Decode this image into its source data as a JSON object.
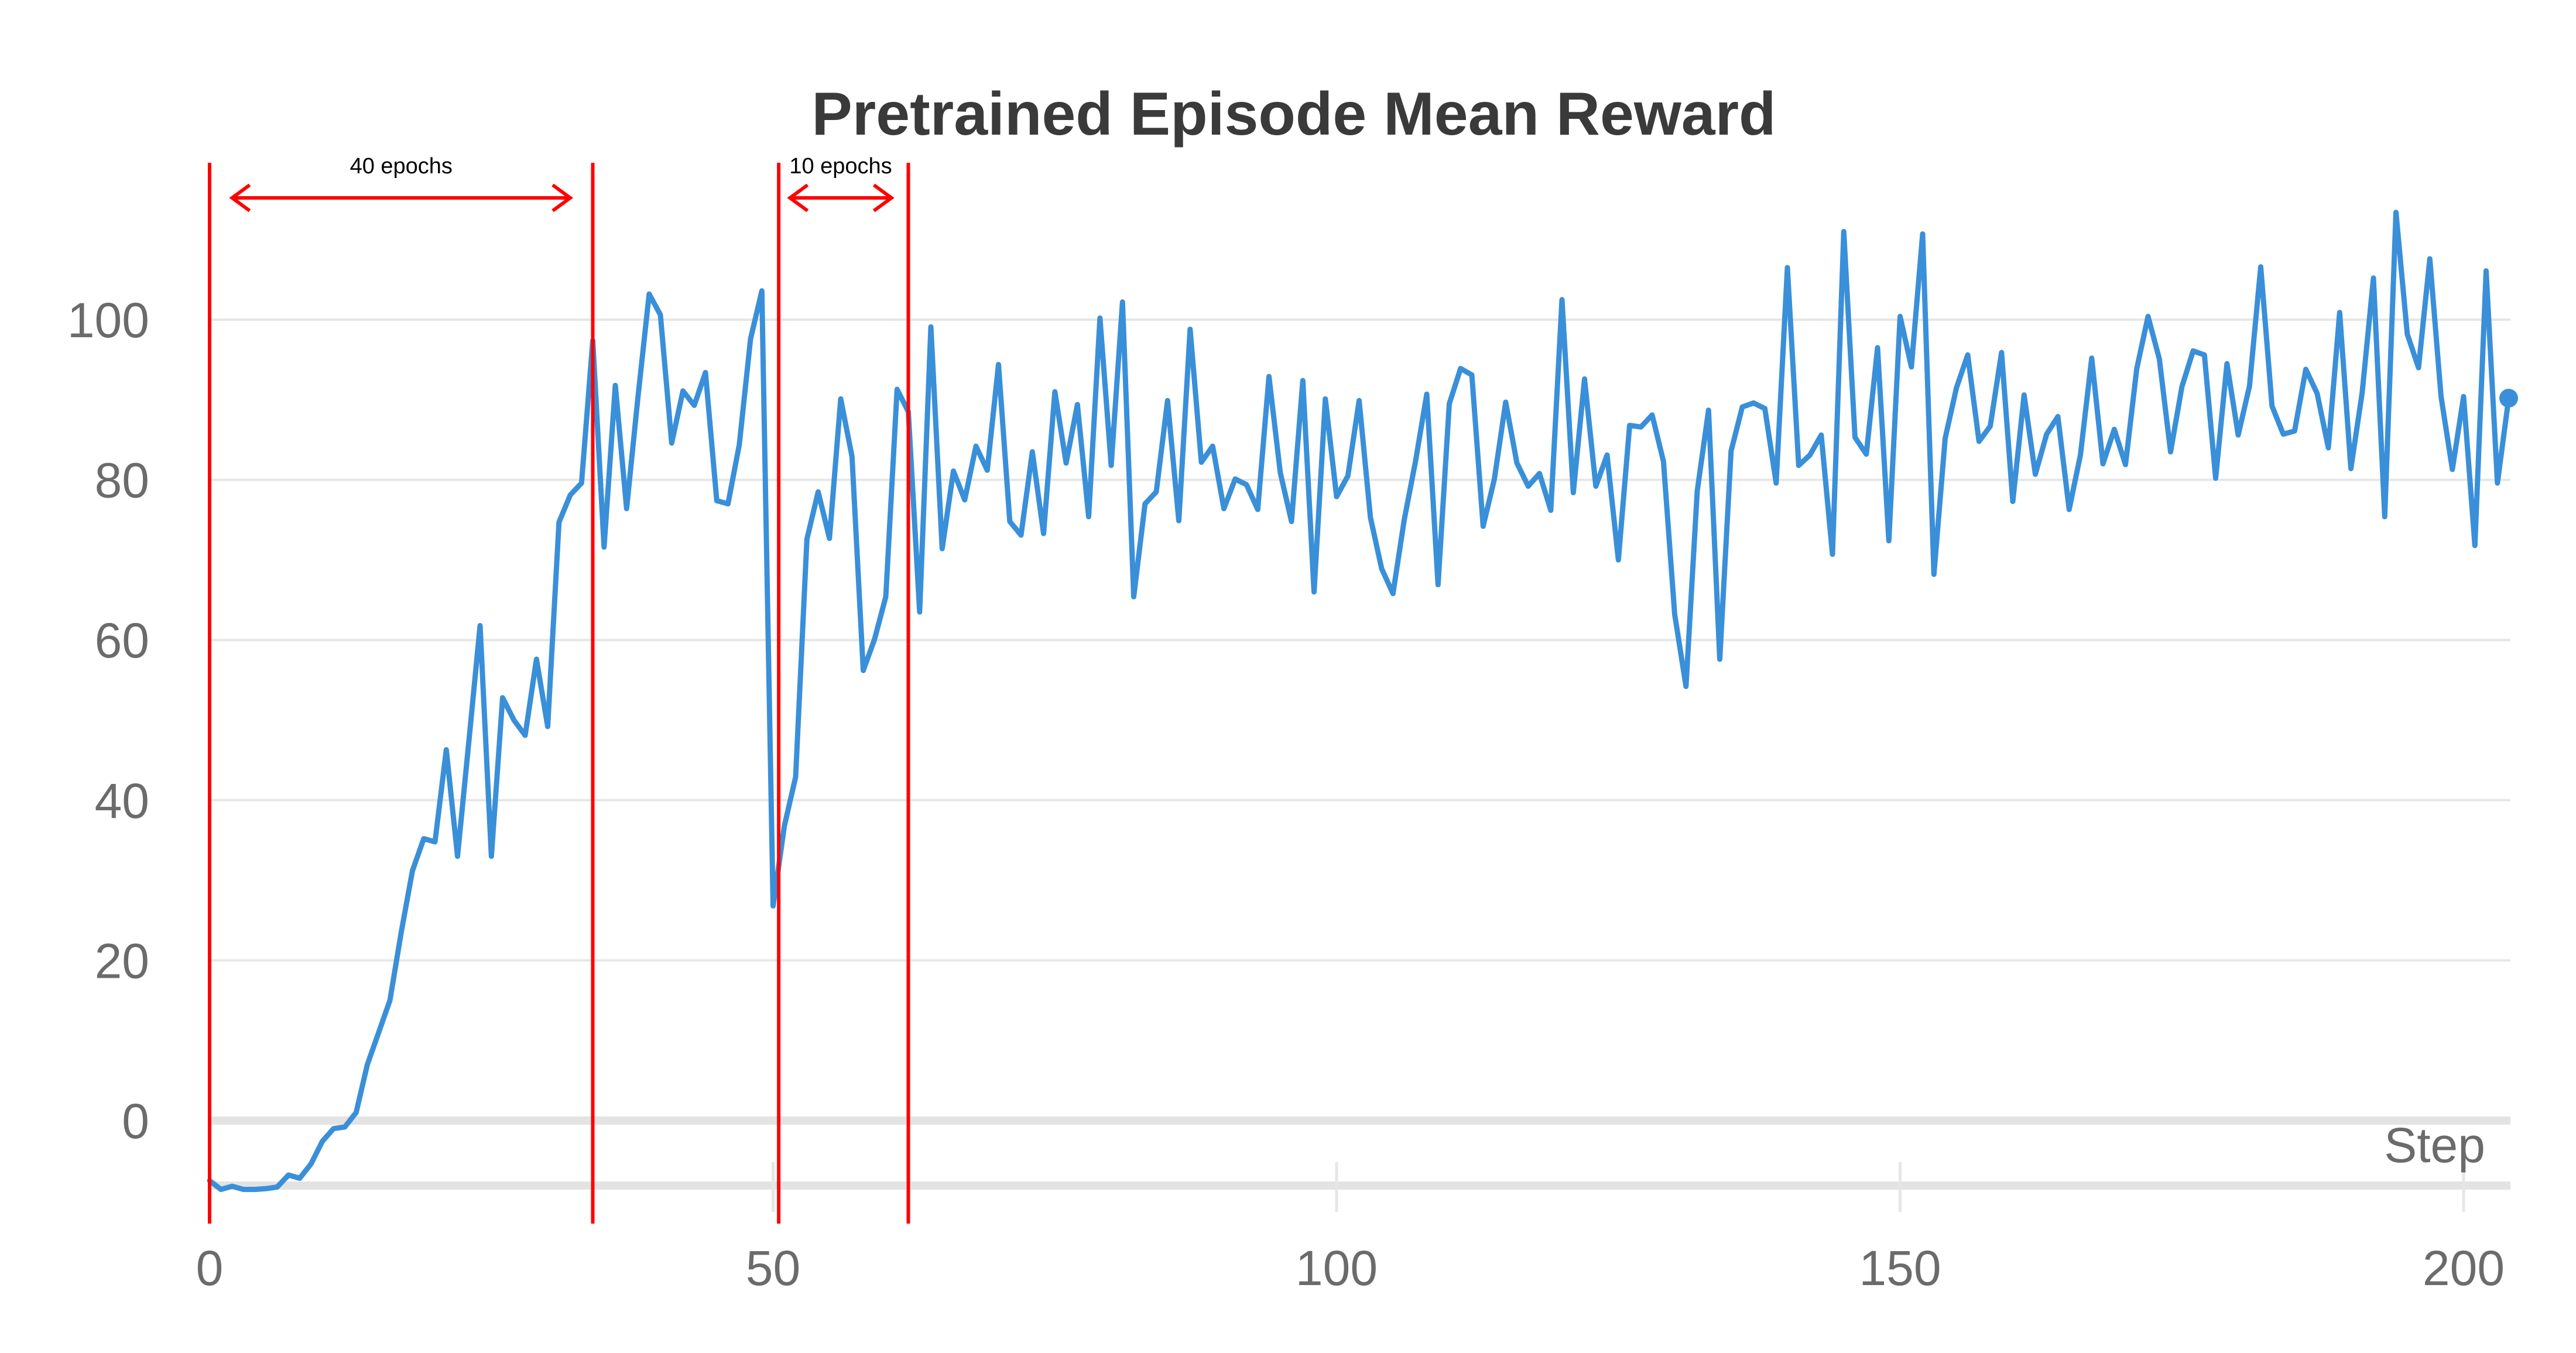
{
  "chart_data": {
    "type": "line",
    "title": "Pretrained Episode Mean Reward",
    "xlabel": "Step",
    "ylabel": "",
    "xlim": [
      0,
      205
    ],
    "ylim": [
      -9,
      114
    ],
    "xticks": [
      0,
      50,
      100,
      150,
      200
    ],
    "yticks": [
      0,
      20,
      40,
      60,
      80,
      100
    ],
    "grid": true,
    "colors": {
      "line": "#3a8fd9",
      "annotation": "#ff0000",
      "grid": "#e6e6e6",
      "zero_line": "#e3e3e3"
    },
    "series": [
      {
        "x": [
          0,
          1,
          2,
          3,
          4,
          5,
          6,
          7,
          8,
          9,
          10,
          11,
          12,
          13,
          14,
          15,
          16,
          17,
          18,
          19,
          20,
          21,
          22,
          23,
          24,
          25,
          26,
          27,
          28,
          29,
          30,
          31,
          32,
          33,
          34,
          35,
          36,
          37,
          38,
          39,
          40,
          41,
          42,
          43,
          44,
          45,
          46,
          47,
          48,
          49,
          50,
          51,
          52,
          53,
          54,
          55,
          56,
          57,
          58,
          59,
          60,
          61,
          62,
          63,
          64,
          65,
          66,
          67,
          68,
          69,
          70,
          71,
          72,
          73,
          74,
          75,
          76,
          77,
          78,
          79,
          80,
          81,
          82,
          83,
          84,
          85,
          86,
          87,
          88,
          89,
          90,
          91,
          92,
          93,
          94,
          95,
          96,
          97,
          98,
          99,
          100,
          101,
          102,
          103,
          104,
          105,
          106,
          107,
          108,
          109,
          110,
          111,
          112,
          113,
          114,
          115,
          116,
          117,
          118,
          119,
          120,
          121,
          122,
          123,
          124,
          125,
          126,
          127,
          128,
          129,
          130,
          131,
          132,
          133,
          134,
          135,
          136,
          137,
          138,
          139,
          140,
          141,
          142,
          143,
          144,
          145,
          146,
          147,
          148,
          149,
          150,
          151,
          152,
          153,
          154,
          155,
          156,
          157,
          158,
          159,
          160,
          161,
          162,
          163,
          164,
          165,
          166,
          167,
          168,
          169,
          170,
          171,
          172,
          173,
          174,
          175,
          176,
          177,
          178,
          179,
          180,
          181,
          182,
          183,
          184,
          185,
          186,
          187,
          188,
          189,
          190,
          191,
          192,
          193,
          194,
          195,
          196,
          197,
          198,
          199,
          200,
          201,
          202,
          203,
          204
        ],
        "values": [
          -7.5,
          -8.6,
          -8.2,
          -8.6,
          -8.6,
          -8.5,
          -8.3,
          -6.8,
          -7.2,
          -5.4,
          -2.6,
          -1,
          -0.8,
          1,
          7,
          11,
          15,
          23.5,
          31.2,
          35.2,
          34.8,
          46.3,
          33,
          47.3,
          61.8,
          33,
          52.8,
          50,
          48.1,
          57.6,
          49.2,
          74.7,
          78.1,
          79.6,
          97.4,
          71.6,
          91.8,
          76.4,
          90.2,
          103.2,
          100.6,
          84.6,
          91.1,
          89.3,
          93.4,
          77.4,
          77,
          84.4,
          97.6,
          103.6,
          26.8,
          36.8,
          42.9,
          72.6,
          78.5,
          72.7,
          90.1,
          82.9,
          56.2,
          60.1,
          65.4,
          91.3,
          88.5,
          63.5,
          99.1,
          71.4,
          81.1,
          77.5,
          84.2,
          81.2,
          94.4,
          74.8,
          73.1,
          83.5,
          73.3,
          91,
          82.1,
          89.4,
          75.4,
          100.2,
          81.8,
          102.2,
          65.4,
          77,
          78.5,
          89.9,
          74.9,
          98.8,
          82.2,
          84.2,
          76.4,
          80.1,
          79.4,
          76.3,
          92.9,
          80.9,
          74.8,
          92.4,
          66,
          90.1,
          77.9,
          80.5,
          89.9,
          75.3,
          68.9,
          65.8,
          75,
          82.3,
          90.7,
          66.9,
          89.5,
          93.9,
          93.1,
          74.2,
          80.1,
          89.7,
          82.1,
          79.2,
          80.8,
          76.2,
          102.5,
          78.4,
          92.6,
          79.2,
          83.1,
          70,
          86.8,
          86.6,
          88.1,
          82.3,
          63.2,
          54.2,
          78.6,
          88.7,
          57.6,
          83.6,
          89.1,
          89.6,
          88.9,
          79.6,
          106.5,
          81.8,
          83.1,
          85.6,
          70.7,
          111,
          85.3,
          83.2,
          96.5,
          72.4,
          100.4,
          94.1,
          110.7,
          68.2,
          85.2,
          91.5,
          95.6,
          84.8,
          86.7,
          95.9,
          77.3,
          90.6,
          80.7,
          85.7,
          87.9,
          76.3,
          83.1,
          95.2,
          82,
          86.3,
          81.9,
          93.9,
          100.4,
          95.1,
          83.5,
          91.6,
          96.1,
          95.6,
          80.2,
          94.5,
          85.6,
          91.7,
          106.6,
          89.2,
          85.7,
          86.1,
          93.8,
          90.8,
          84,
          100.9,
          81.4,
          90.9,
          105.2,
          75.4,
          113.4,
          98.2,
          94,
          107.6,
          90.4,
          81.3,
          90.4,
          71.8,
          106.1,
          79.6,
          90.2
        ]
      }
    ],
    "annotations": {
      "vlines": [
        0,
        34,
        50.5,
        62
      ],
      "arrows": [
        {
          "from": 2,
          "to": 32,
          "label": "40 epochs"
        },
        {
          "from": 51.5,
          "to": 60.5,
          "label": "10 epochs"
        }
      ]
    }
  }
}
